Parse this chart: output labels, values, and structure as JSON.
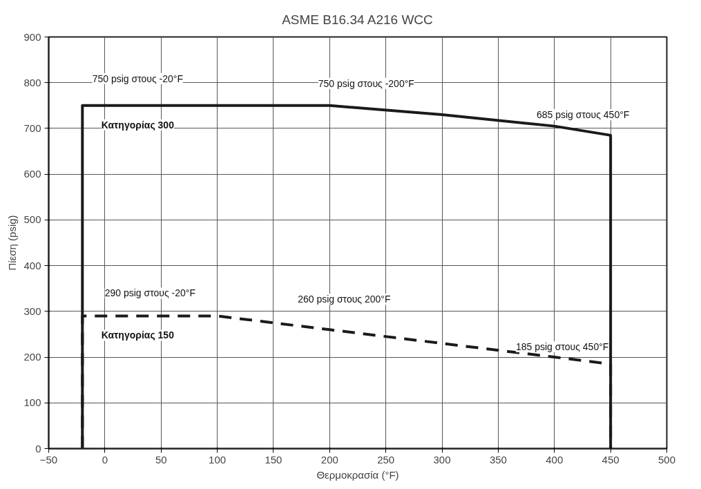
{
  "chart_data": {
    "type": "line",
    "title": "ASME B16.34 A216 WCC",
    "xlabel": "Θερμοκρασία (°F)",
    "ylabel": "Πίεση (psig)",
    "series": [
      {
        "name": "Κατηγορίας 300",
        "color": "#1a1a1a",
        "line_style": "solid",
        "x": [
          -20,
          -20,
          200,
          300,
          400,
          450,
          450
        ],
        "values": [
          0,
          750,
          750,
          730,
          705,
          685,
          0
        ]
      },
      {
        "name": "Κατηγορίας 150",
        "color": "#1a1a1a",
        "line_style": "dashed",
        "x": [
          -20,
          -20,
          100,
          200,
          300,
          400,
          450,
          450
        ],
        "values": [
          0,
          290,
          290,
          260,
          230,
          200,
          185,
          0
        ]
      }
    ],
    "annotations": [
      {
        "text": "750 psig στους -20°F",
        "x": -20,
        "y": 750
      },
      {
        "text": "750 psig στους -200°F",
        "x": 200,
        "y": 750
      },
      {
        "text": "685 psig στους 450°F",
        "x": 450,
        "y": 685
      },
      {
        "text": "290 psig στους -20°F",
        "x": -20,
        "y": 290
      },
      {
        "text": "260 psig στους 200°F",
        "x": 200,
        "y": 260
      },
      {
        "text": "185 psig στους 450°F",
        "x": 450,
        "y": 185
      }
    ],
    "xlim": [
      -50,
      500
    ],
    "xticks": [
      -50,
      0,
      50,
      100,
      150,
      200,
      250,
      300,
      350,
      400,
      450,
      500
    ],
    "ylim": [
      0,
      900
    ],
    "yticks": [
      0,
      100,
      200,
      300,
      400,
      500,
      600,
      700,
      800,
      900
    ],
    "grid": true,
    "marker": "none"
  }
}
